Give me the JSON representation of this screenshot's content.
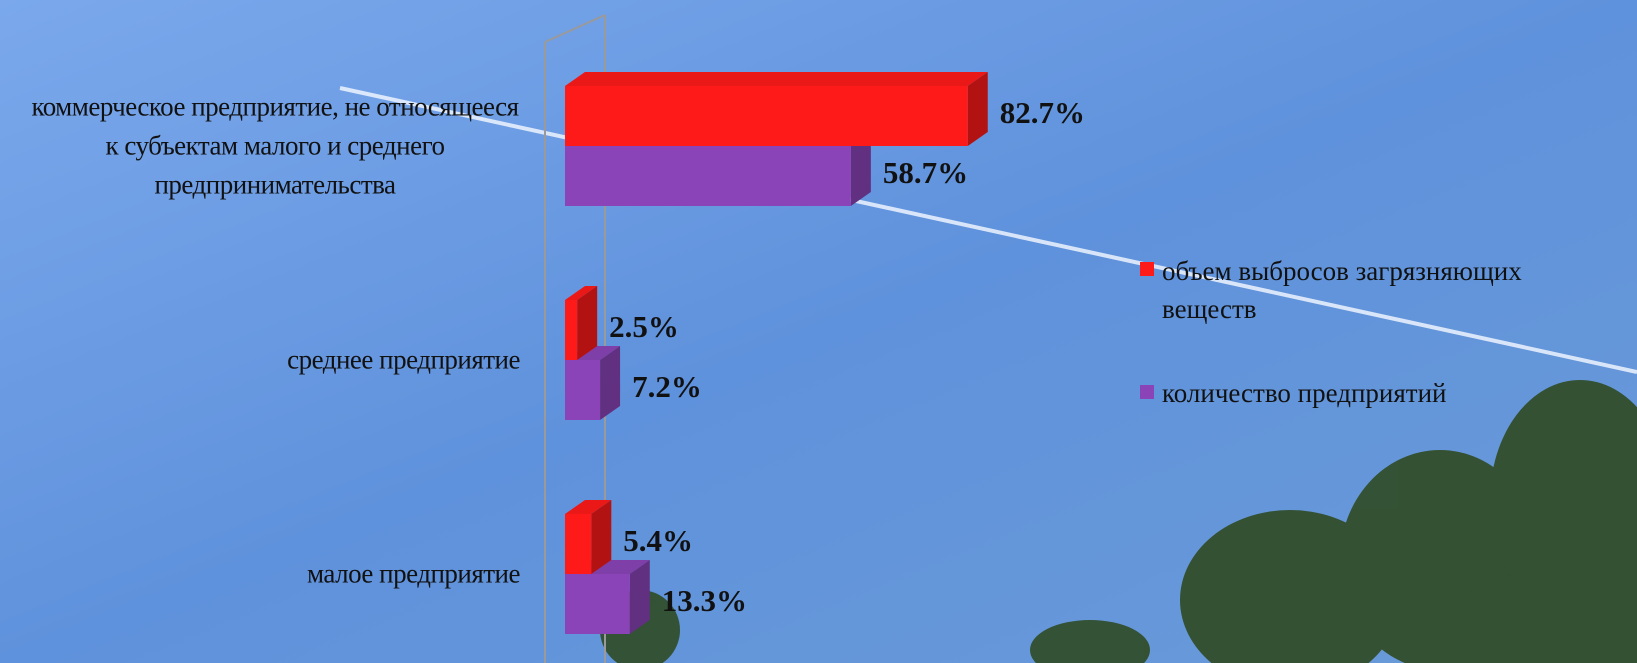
{
  "chart_data": {
    "type": "bar3d-horizontal",
    "categories": [
      "коммерческое предприятие, не относящееся к субъектам малого и среднего предпринимательства",
      "среднее предприятие",
      "малое предприятие"
    ],
    "series": [
      {
        "name": "объем выбросов загрязняющих веществ",
        "color": "#ff1a1a",
        "values": [
          82.7,
          2.5,
          5.4
        ],
        "value_labels": [
          "82.7%",
          "2.5%",
          "5.4%"
        ]
      },
      {
        "name": "количество предприятий",
        "color": "#8a44b8",
        "values": [
          58.7,
          7.2,
          13.3
        ],
        "value_labels": [
          "58.7%",
          "7.2%",
          "13.3%"
        ]
      }
    ]
  }
}
